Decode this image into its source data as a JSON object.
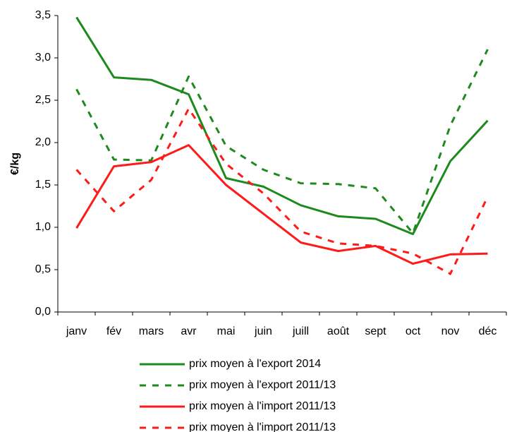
{
  "chart_data": {
    "type": "line",
    "y_label": "€/kg",
    "categories": [
      "janv",
      "fév",
      "mars",
      "avr",
      "mai",
      "juin",
      "juill",
      "août",
      "sept",
      "oct",
      "nov",
      "déc"
    ],
    "series": [
      {
        "name": "prix moyen à l'export 2014",
        "color": "#1e8a1e",
        "dashed": false,
        "values": [
          3.48,
          2.77,
          2.74,
          2.57,
          1.58,
          1.48,
          1.26,
          1.13,
          1.1,
          0.92,
          1.78,
          2.26
        ]
      },
      {
        "name": "prix moyen à l'export 2011/13",
        "color": "#1e8a1e",
        "dashed": true,
        "values": [
          2.63,
          1.8,
          1.79,
          2.78,
          1.96,
          1.68,
          1.52,
          1.51,
          1.46,
          0.93,
          2.2,
          3.1
        ]
      },
      {
        "name": "prix moyen à l'import 2011/13",
        "color": "#ff1a1a",
        "dashed": false,
        "values": [
          0.99,
          1.72,
          1.77,
          1.97,
          1.5,
          1.16,
          0.82,
          0.72,
          0.78,
          0.57,
          0.68,
          0.69
        ]
      },
      {
        "name": "prix moyen à l'import 2011/13",
        "color": "#ff1a1a",
        "dashed": true,
        "values": [
          1.68,
          1.19,
          1.56,
          2.4,
          1.75,
          1.4,
          0.95,
          0.81,
          0.78,
          0.69,
          0.45,
          1.36
        ]
      }
    ],
    "ylim": [
      0,
      3.5
    ],
    "yticks": [
      {
        "value": 0,
        "label": "0,0"
      },
      {
        "value": 0.5,
        "label": "0,5"
      },
      {
        "value": 1,
        "label": "1,0"
      },
      {
        "value": 1.5,
        "label": "1,5"
      },
      {
        "value": 2,
        "label": "2,0"
      },
      {
        "value": 2.5,
        "label": "2,5"
      },
      {
        "value": 3,
        "label": "3,0"
      },
      {
        "value": 3.5,
        "label": "3,5"
      }
    ],
    "grid": false,
    "legend": "bottom"
  }
}
